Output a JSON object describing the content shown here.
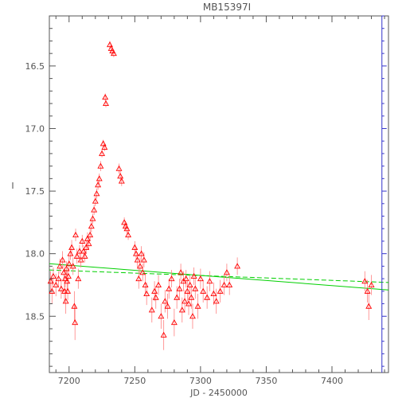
{
  "chart_data": {
    "type": "scatter",
    "title": "MB15397I",
    "xlabel": "JD - 2450000",
    "ylabel": "I",
    "xlim": [
      7185,
      7443
    ],
    "ylim": [
      18.95,
      16.1
    ],
    "y_inverted": true,
    "x_ticks": [
      7200,
      7250,
      7300,
      7350,
      7400
    ],
    "y_ticks": [
      16.5,
      17.0,
      17.5,
      18.0,
      18.5
    ],
    "grid": false,
    "marker": "open-triangle",
    "colors": {
      "points": "#ff0000",
      "errorbars": "#ff8080",
      "fit_lines": "#00d000",
      "right_axis": "#3333cc",
      "axes": "#555555"
    },
    "series": [
      {
        "points": [
          [
            7186,
            18.22,
            0.08
          ],
          [
            7187,
            18.3,
            0.1
          ],
          [
            7188,
            18.18,
            0.07
          ],
          [
            7190,
            18.25,
            0.09
          ],
          [
            7192,
            18.2,
            0.06
          ],
          [
            7193,
            18.1,
            0.06
          ],
          [
            7194,
            18.28,
            0.08
          ],
          [
            7195,
            18.05,
            0.07
          ],
          [
            7196,
            18.15,
            0.06
          ],
          [
            7196.5,
            18.3,
            0.09
          ],
          [
            7197,
            18.2,
            0.07
          ],
          [
            7197.5,
            18.38,
            0.1
          ],
          [
            7198,
            18.12,
            0.06
          ],
          [
            7198.5,
            18.22,
            0.08
          ],
          [
            7199,
            18.3,
            0.07
          ],
          [
            7199.5,
            18.18,
            0.06
          ],
          [
            7200,
            18.08,
            0.06
          ],
          [
            7201,
            18.0,
            0.05
          ],
          [
            7202,
            17.95,
            0.06
          ],
          [
            7203,
            18.1,
            0.07
          ],
          [
            7204,
            18.42,
            0.12
          ],
          [
            7204.5,
            18.55,
            0.14
          ],
          [
            7205,
            17.85,
            0.05
          ],
          [
            7206,
            18.02,
            0.06
          ],
          [
            7207,
            18.2,
            0.08
          ],
          [
            7208,
            17.98,
            0.05
          ],
          [
            7209,
            18.05,
            0.06
          ],
          [
            7210,
            17.9,
            0.05
          ],
          [
            7211,
            17.98,
            0.05
          ],
          [
            7212,
            18.02,
            0.05
          ],
          [
            7213,
            17.95,
            0.05
          ],
          [
            7214,
            17.88,
            0.05
          ],
          [
            7215,
            17.92,
            0.05
          ],
          [
            7216,
            17.85,
            0.05
          ],
          [
            7217,
            17.78,
            0.05
          ],
          [
            7218,
            17.72,
            0.04
          ],
          [
            7219,
            17.65,
            0.04
          ],
          [
            7220,
            17.58,
            0.04
          ],
          [
            7221,
            17.52,
            0.04
          ],
          [
            7222,
            17.45,
            0.04
          ],
          [
            7223,
            17.4,
            0.04
          ],
          [
            7224,
            17.3,
            0.04
          ],
          [
            7225,
            17.2,
            0.03
          ],
          [
            7226,
            17.12,
            0.03
          ],
          [
            7227,
            17.15,
            0.03
          ],
          [
            7227.5,
            16.75,
            0.03
          ],
          [
            7228,
            16.8,
            0.03
          ],
          [
            7231,
            16.33,
            0.03
          ],
          [
            7232,
            16.36,
            0.03
          ],
          [
            7233,
            16.38,
            0.03
          ],
          [
            7234,
            16.4,
            0.03
          ],
          [
            7238,
            17.32,
            0.04
          ],
          [
            7239,
            17.38,
            0.04
          ],
          [
            7240,
            17.42,
            0.04
          ],
          [
            7242,
            17.75,
            0.04
          ],
          [
            7243,
            17.78,
            0.04
          ],
          [
            7244,
            17.8,
            0.04
          ],
          [
            7245,
            17.85,
            0.04
          ],
          [
            7250,
            17.95,
            0.05
          ],
          [
            7251,
            18.0,
            0.05
          ],
          [
            7252,
            18.05,
            0.06
          ],
          [
            7253,
            18.2,
            0.08
          ],
          [
            7254,
            18.1,
            0.07
          ],
          [
            7255,
            18.0,
            0.06
          ],
          [
            7256,
            18.15,
            0.07
          ],
          [
            7257,
            18.05,
            0.06
          ],
          [
            7258,
            18.25,
            0.08
          ],
          [
            7259,
            18.32,
            0.09
          ],
          [
            7263,
            18.45,
            0.1
          ],
          [
            7265,
            18.3,
            0.08
          ],
          [
            7266,
            18.35,
            0.09
          ],
          [
            7268,
            18.25,
            0.08
          ],
          [
            7270,
            18.5,
            0.1
          ],
          [
            7272,
            18.65,
            0.12
          ],
          [
            7273,
            18.38,
            0.09
          ],
          [
            7275,
            18.42,
            0.1
          ],
          [
            7276,
            18.28,
            0.08
          ],
          [
            7278,
            18.2,
            0.07
          ],
          [
            7280,
            18.55,
            0.11
          ],
          [
            7282,
            18.35,
            0.09
          ],
          [
            7284,
            18.28,
            0.08
          ],
          [
            7285,
            18.15,
            0.07
          ],
          [
            7286,
            18.45,
            0.1
          ],
          [
            7287,
            18.22,
            0.08
          ],
          [
            7288,
            18.38,
            0.09
          ],
          [
            7289,
            18.2,
            0.07
          ],
          [
            7290,
            18.3,
            0.08
          ],
          [
            7291,
            18.4,
            0.09
          ],
          [
            7292,
            18.25,
            0.08
          ],
          [
            7293,
            18.35,
            0.09
          ],
          [
            7294,
            18.5,
            0.1
          ],
          [
            7295,
            18.18,
            0.07
          ],
          [
            7296,
            18.28,
            0.08
          ],
          [
            7298,
            18.42,
            0.1
          ],
          [
            7300,
            18.2,
            0.08
          ],
          [
            7302,
            18.3,
            0.09
          ],
          [
            7305,
            18.35,
            0.09
          ],
          [
            7307,
            18.22,
            0.08
          ],
          [
            7310,
            18.32,
            0.09
          ],
          [
            7312,
            18.38,
            0.1
          ],
          [
            7315,
            18.3,
            0.09
          ],
          [
            7318,
            18.25,
            0.08
          ],
          [
            7320,
            18.15,
            0.07
          ],
          [
            7322,
            18.25,
            0.08
          ],
          [
            7328,
            18.1,
            0.07
          ],
          [
            7425,
            18.22,
            0.08
          ],
          [
            7427,
            18.3,
            0.09
          ],
          [
            7428,
            18.42,
            0.11
          ],
          [
            7430,
            18.25,
            0.08
          ]
        ]
      }
    ],
    "fit_lines": [
      {
        "style": "solid",
        "x": [
          7185,
          7443
        ],
        "y": [
          18.08,
          18.29
        ]
      },
      {
        "style": "dashed",
        "x": [
          7185,
          7443
        ],
        "y": [
          18.13,
          18.23
        ]
      }
    ]
  }
}
